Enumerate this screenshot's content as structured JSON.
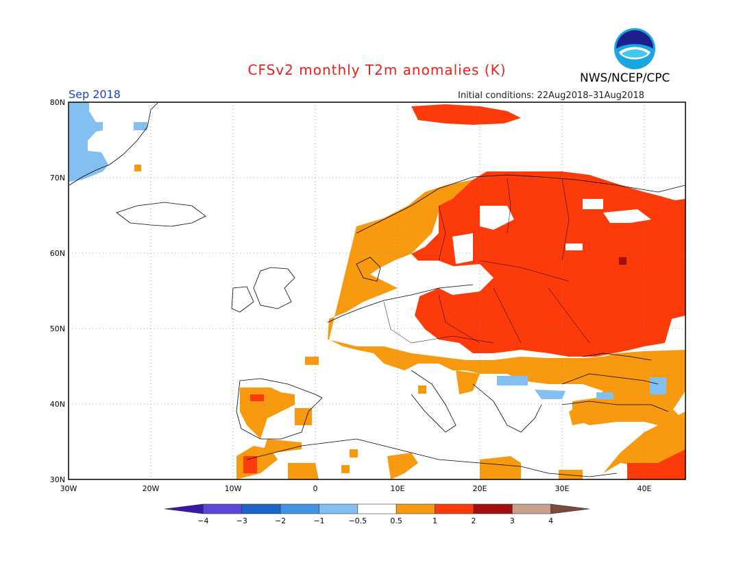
{
  "header": {
    "title": "CFSv2 monthly T2m anomalies (K)",
    "agency": "NWS/NCEP/CPC",
    "month": "Sep 2018",
    "initial_conditions": "Initial conditions: 22Aug2018–31Aug2018",
    "logo_text": "NOAA"
  },
  "axes": {
    "lon_labels": [
      "30W",
      "20W",
      "10W",
      "0",
      "10E",
      "20E",
      "30E",
      "40E"
    ],
    "lat_labels": [
      "30N",
      "40N",
      "50N",
      "60N",
      "70N",
      "80N"
    ]
  },
  "colorbar": {
    "labels": [
      "−4",
      "−3",
      "−2",
      "−1",
      "−0.5",
      "0.5",
      "1",
      "2",
      "3",
      "4"
    ],
    "colors": [
      "#3b17a6",
      "#5a48d6",
      "#1f64c8",
      "#4292e6",
      "#84bff2",
      "#ffffff",
      "#f79a10",
      "#fc3a0a",
      "#a30e0e",
      "#c8a08e",
      "#7a4a3a"
    ]
  },
  "anomaly_regions": [
    {
      "category": "1 to 2",
      "color": "#fc3a0a",
      "area": "Scandinavia, Finland, western Russia, eastern Europe"
    },
    {
      "category": "0.5 to 1",
      "color": "#f79a10",
      "area": "Central Europe, Norway, Iberia, Turkey, Middle East"
    },
    {
      "category": "-1 to -0.5",
      "color": "#84bff2",
      "area": "Greenland, Black Sea, Balkans"
    },
    {
      "category": "2 to 3",
      "color": "#a30e0e",
      "area": "western Russia (isolated)"
    }
  ]
}
